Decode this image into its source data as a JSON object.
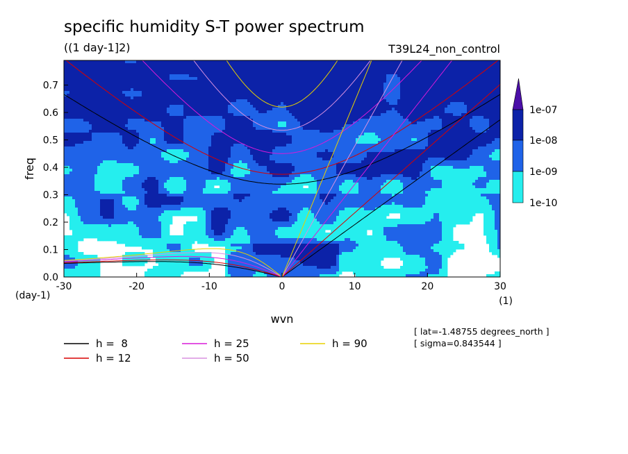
{
  "chart_data": {
    "type": "heatmap",
    "title": "specific humidity S-T power spectrum",
    "subtitle": "((1 day-1]2)",
    "run_label": "T39L24_non_control",
    "xlabel": "wvn",
    "ylabel": "freq",
    "x_unit": "(1)",
    "y_unit": "(day-1)",
    "xlim": [
      -30,
      30
    ],
    "ylim": [
      0,
      0.79
    ],
    "x_ticks": [
      "-30",
      "-20",
      "-10",
      "0",
      "10",
      "20",
      "30"
    ],
    "x_tick_values": [
      -30,
      -20,
      -10,
      0,
      10,
      20,
      30
    ],
    "y_ticks": [
      "0.0",
      "0.1",
      "0.2",
      "0.3",
      "0.4",
      "0.5",
      "0.6",
      "0.7"
    ],
    "y_tick_values": [
      0,
      0.1,
      0.2,
      0.3,
      0.4,
      0.5,
      0.6,
      0.7
    ],
    "colorbar": {
      "levels": [
        "1e-07",
        "1e-08",
        "1e-09",
        "1e-10"
      ],
      "colors": [
        "#4b0fa8",
        "#0c22a8",
        "#1f63e8",
        "#25eeee"
      ],
      "below_color": "#ffffff"
    },
    "series": [
      {
        "name": "h =  8",
        "h": 8,
        "color": "#000000"
      },
      {
        "name": "h = 12",
        "h": 12,
        "color": "#d80000"
      },
      {
        "name": "h = 25",
        "h": 25,
        "color": "#d81ad8"
      },
      {
        "name": "h = 50",
        "h": 50,
        "color": "#d890e0"
      },
      {
        "name": "h = 90",
        "h": 90,
        "color": "#e8d000"
      }
    ],
    "annotations": [
      "[ lat=-1.48755 degrees_north ]",
      "[ sigma=0.843544 ]"
    ]
  }
}
